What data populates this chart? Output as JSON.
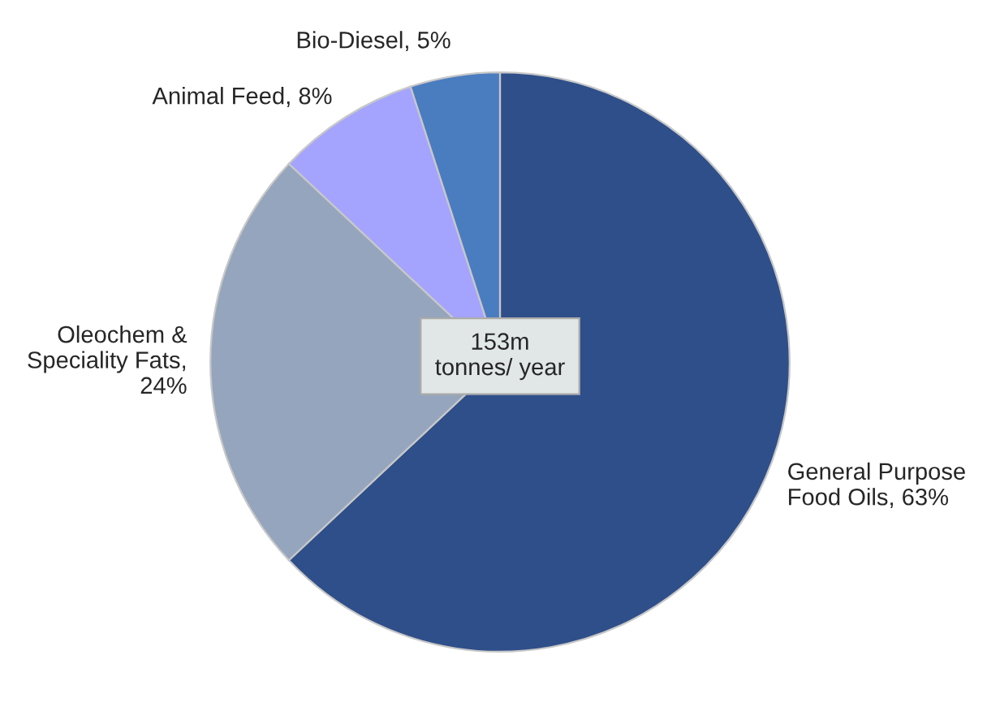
{
  "chart_data": {
    "type": "pie",
    "categories": [
      "General Purpose\nFood Oils, 63%",
      "Oleochem &\nSpeciality Fats,\n24%",
      "Animal Feed, 8%",
      "Bio-Diesel, 5%"
    ],
    "values": [
      63,
      24,
      8,
      5
    ],
    "colors": [
      "#2f4f8a",
      "#95a5bd",
      "#a4a4ff",
      "#4a7cc0"
    ],
    "annotations": [
      "153m\ntonnes/ year"
    ]
  }
}
